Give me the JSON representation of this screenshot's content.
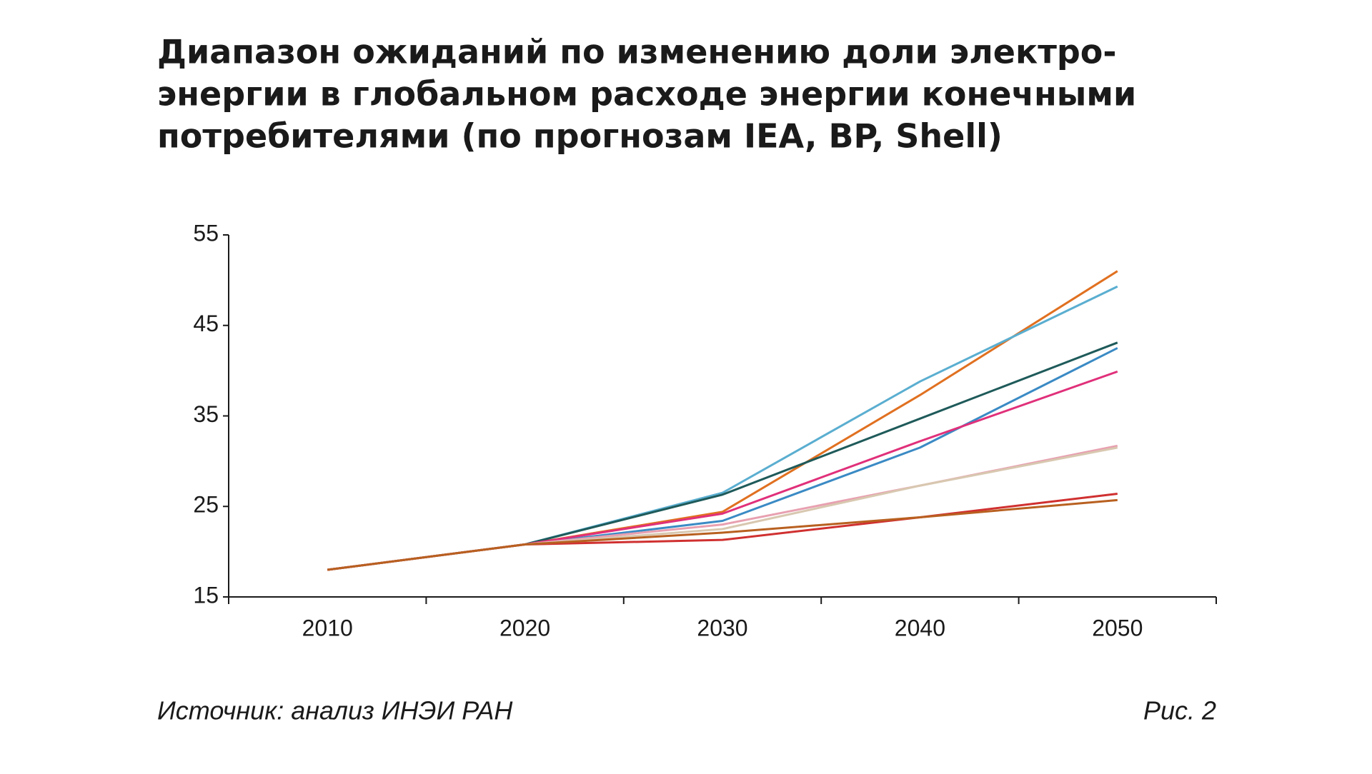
{
  "chart_data": {
    "type": "line",
    "title": [
      "Диапазон ожиданий по изменению доли электро-",
      "энергии в глобальном расходе энергии конечными",
      "потребителями (по прогнозам IEA, BP, Shell)"
    ],
    "source": "Источник: анализ ИНЭИ РАН",
    "figure_label": "Рис. 2",
    "categories": [
      "2010",
      "2020",
      "2030",
      "2040",
      "2050"
    ],
    "series": [
      {
        "color": "#e07020",
        "values": [
          18.0,
          20.8,
          24.4,
          37.3,
          51.0
        ]
      },
      {
        "color": "#5aaed0",
        "values": [
          18.0,
          20.8,
          26.5,
          38.8,
          49.3
        ]
      },
      {
        "color": "#1f5a5a",
        "values": [
          18.0,
          20.8,
          26.3,
          34.7,
          43.1
        ]
      },
      {
        "color": "#3a8ac4",
        "values": [
          18.0,
          20.8,
          23.4,
          31.5,
          42.5
        ]
      },
      {
        "color": "#e0307a",
        "values": [
          18.0,
          20.8,
          24.2,
          32.2,
          39.9
        ]
      },
      {
        "color": "#e8a0b0",
        "values": [
          18.0,
          20.8,
          23.0,
          27.3,
          31.7
        ]
      },
      {
        "color": "#d8c8b0",
        "values": [
          18.0,
          20.8,
          22.5,
          27.3,
          31.5
        ]
      },
      {
        "color": "#d03030",
        "values": [
          18.0,
          20.8,
          21.3,
          23.8,
          26.4
        ]
      },
      {
        "color": "#b86020",
        "values": [
          18.0,
          20.8,
          22.1,
          23.8,
          25.7
        ]
      }
    ],
    "ylim": [
      15,
      55
    ],
    "yticks": [
      15,
      25,
      35,
      45,
      55
    ],
    "grid": false
  }
}
